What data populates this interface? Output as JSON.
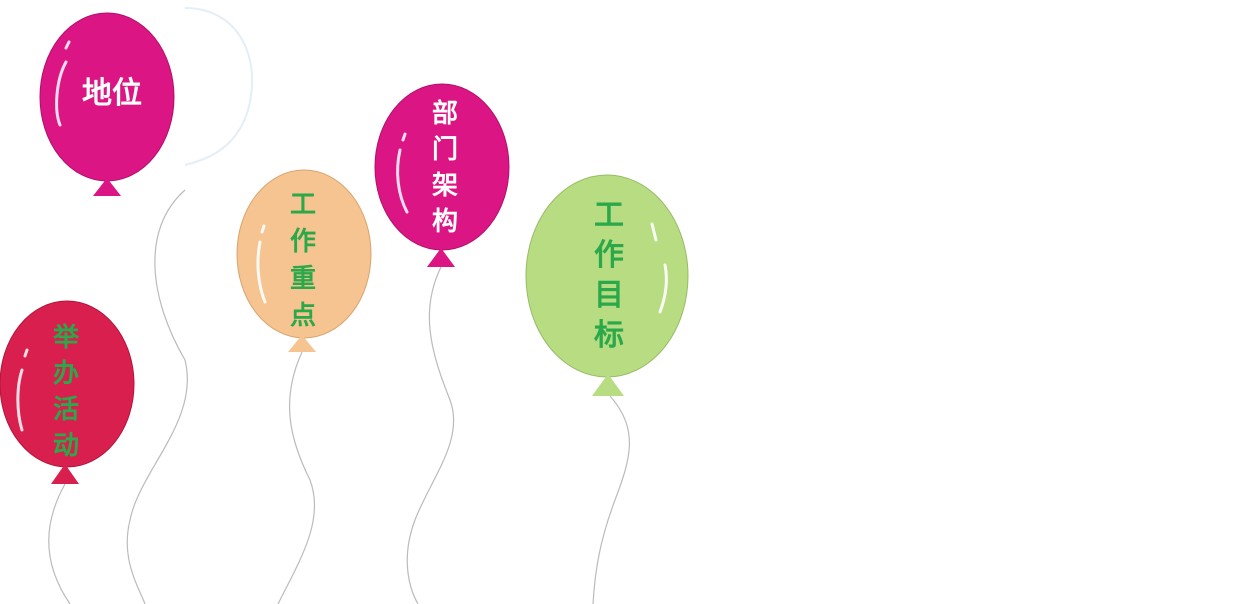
{
  "colors": {
    "background": "#ffffff",
    "balloon_magenta": "#db1684",
    "balloon_red": "#d91f4d",
    "balloon_peach": "#f5c490",
    "balloon_green": "#b8dc82",
    "string": "#bbbbbb",
    "text_white": "#ffffff",
    "text_green": "#2aa84a"
  },
  "balloons": [
    {
      "id": "diwei",
      "label": "地位",
      "color": "#db1684",
      "text_color": "#ffffff"
    },
    {
      "id": "juban-huodong",
      "label": "举\n办\n活\n动",
      "color": "#d91f4d",
      "text_color": "#2aa84a"
    },
    {
      "id": "gongzuo-zhongdian",
      "label": "工\n作\n重\n点",
      "color": "#f5c490",
      "text_color": "#2aa84a"
    },
    {
      "id": "bumen-jiagou",
      "label": "部\n门\n架\n构",
      "color": "#db1684",
      "text_color": "#ffffff"
    },
    {
      "id": "gongzuo-mubiao",
      "label": "工\n作\n目\n标",
      "color": "#b8dc82",
      "text_color": "#2aa84a"
    }
  ]
}
